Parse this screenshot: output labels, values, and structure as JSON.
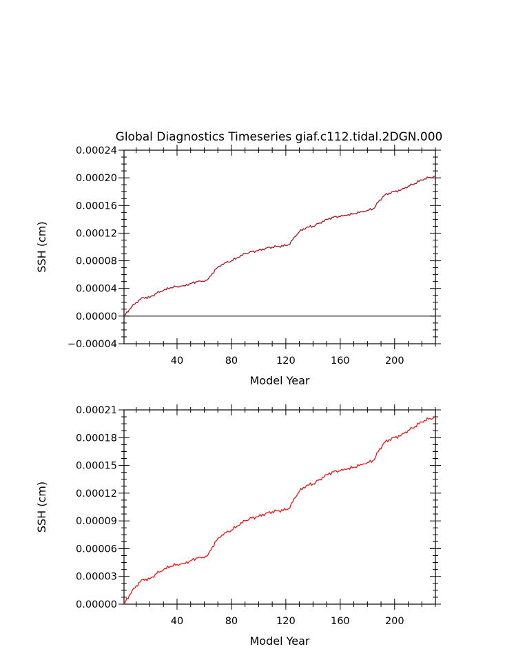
{
  "chart_data": [
    {
      "type": "line",
      "title": "Global Diagnostics Timeseries giaf.c112.tidal.2DGN.000",
      "xlabel": "Model Year",
      "ylabel": "SSH (cm)",
      "xlim": [
        1,
        230
      ],
      "ylim": [
        -4e-05,
        0.00024
      ],
      "xticks": [
        40,
        80,
        120,
        160,
        200
      ],
      "yticks": [
        -4e-05,
        0,
        4e-05,
        8e-05,
        0.00012,
        0.00016,
        0.0002,
        0.00024
      ],
      "ytick_labels": [
        "−0.00004",
        "0.00000",
        "0.00004",
        "0.00008",
        "0.00012",
        "0.00016",
        "0.00020",
        "0.00024"
      ],
      "zero_line": true,
      "grid": false,
      "series": [
        {
          "color": "#a8141e",
          "x": [
            1,
            5,
            10,
            15,
            20,
            25,
            30,
            35,
            40,
            45,
            50,
            55,
            60,
            63,
            66,
            70,
            75,
            80,
            85,
            90,
            95,
            100,
            105,
            110,
            115,
            120,
            123,
            126,
            130,
            135,
            140,
            145,
            150,
            155,
            160,
            165,
            170,
            175,
            180,
            185,
            188,
            192,
            196,
            200,
            205,
            210,
            215,
            220,
            225,
            230
          ],
          "y": [
            0.0,
            1e-05,
            2e-05,
            2.7e-05,
            2.7e-05,
            3.3e-05,
            3.7e-05,
            4.1e-05,
            4.3e-05,
            4.4e-05,
            4.7e-05,
            5e-05,
            5e-05,
            5.4e-05,
            6.2e-05,
            7.1e-05,
            7.7e-05,
            8e-05,
            8.5e-05,
            9e-05,
            9.3e-05,
            9.5e-05,
            9.8e-05,
            0.0001,
            0.000101,
            0.000102,
            0.000104,
            0.000114,
            0.000122,
            0.000128,
            0.00013,
            0.000135,
            0.00014,
            0.000143,
            0.000144,
            0.000146,
            0.000148,
            0.000151,
            0.000153,
            0.000156,
            0.000165,
            0.000174,
            0.000178,
            0.00018,
            0.000183,
            0.000188,
            0.000192,
            0.000197,
            0.0002,
            0.000202
          ]
        }
      ]
    },
    {
      "type": "line",
      "xlabel": "Model Year",
      "ylabel": "SSH (cm)",
      "xlim": [
        1,
        230
      ],
      "ylim": [
        0,
        0.00021
      ],
      "xticks": [
        40,
        80,
        120,
        160,
        200
      ],
      "yticks": [
        0,
        3e-05,
        6e-05,
        9e-05,
        0.00012,
        0.00015,
        0.00018,
        0.00021
      ],
      "ytick_labels": [
        "0.00000",
        "0.00003",
        "0.00006",
        "0.00009",
        "0.00012",
        "0.00015",
        "0.00018",
        "0.00021"
      ],
      "zero_line": false,
      "grid": false,
      "series": [
        {
          "color": "#ee1111",
          "x": [
            1,
            5,
            10,
            15,
            20,
            25,
            30,
            35,
            40,
            45,
            50,
            55,
            60,
            63,
            66,
            70,
            75,
            80,
            85,
            90,
            95,
            100,
            105,
            110,
            115,
            120,
            123,
            126,
            130,
            135,
            140,
            145,
            150,
            155,
            160,
            165,
            170,
            175,
            180,
            185,
            188,
            192,
            196,
            200,
            205,
            210,
            215,
            220,
            225,
            230
          ],
          "y": [
            0.0,
            1e-05,
            2e-05,
            2.7e-05,
            2.7e-05,
            3.3e-05,
            3.7e-05,
            4.1e-05,
            4.3e-05,
            4.4e-05,
            4.7e-05,
            5e-05,
            5e-05,
            5.4e-05,
            6.2e-05,
            7.1e-05,
            7.7e-05,
            8e-05,
            8.5e-05,
            9e-05,
            9.3e-05,
            9.5e-05,
            9.8e-05,
            0.0001,
            0.000101,
            0.000102,
            0.000104,
            0.000114,
            0.000122,
            0.000128,
            0.00013,
            0.000135,
            0.00014,
            0.000143,
            0.000144,
            0.000146,
            0.000148,
            0.000151,
            0.000153,
            0.000156,
            0.000165,
            0.000174,
            0.000178,
            0.00018,
            0.000183,
            0.000188,
            0.000192,
            0.000197,
            0.0002,
            0.000202
          ]
        }
      ]
    }
  ]
}
